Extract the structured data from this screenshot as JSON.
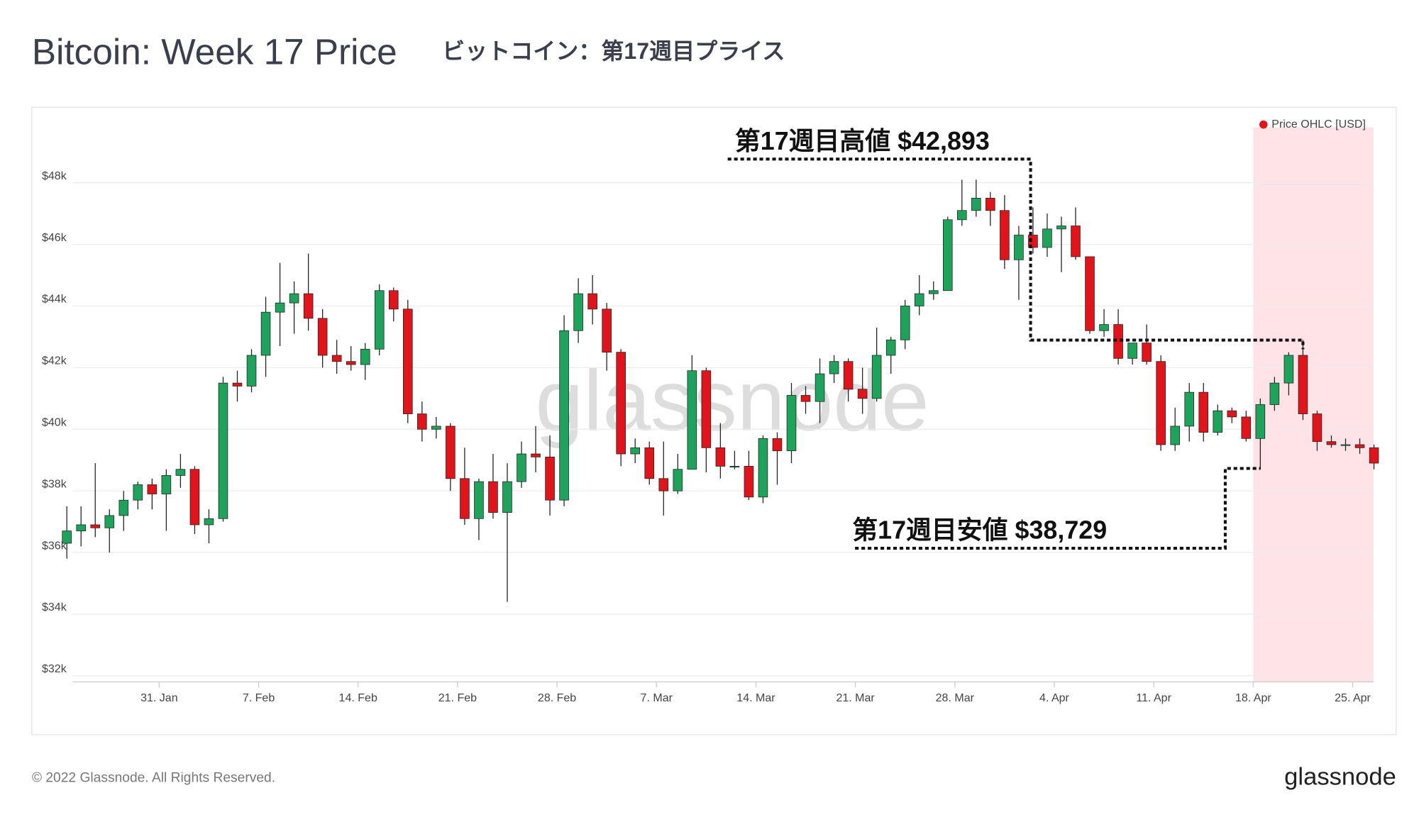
{
  "chart_data": {
    "type": "candlestick",
    "title": "Bitcoin: Week 17 Price",
    "subtitle": "ビットコイン：第17週目プライス",
    "x": [
      "Jan 24",
      "Jan 25",
      "Jan 26",
      "Jan 27",
      "Jan 28",
      "Jan 29",
      "Jan 30",
      "Jan 31",
      "Feb 1",
      "Feb 2",
      "Feb 3",
      "Feb 4",
      "Feb 5",
      "Feb 6",
      "Feb 7",
      "Feb 8",
      "Feb 9",
      "Feb 10",
      "Feb 11",
      "Feb 12",
      "Feb 13",
      "Feb 14",
      "Feb 15",
      "Feb 16",
      "Feb 17",
      "Feb 18",
      "Feb 19",
      "Feb 20",
      "Feb 21",
      "Feb 22",
      "Feb 23",
      "Feb 24",
      "Feb 25",
      "Feb 26",
      "Feb 27",
      "Feb 28",
      "Mar 1",
      "Mar 2",
      "Mar 3",
      "Mar 4",
      "Mar 5",
      "Mar 6",
      "Mar 7",
      "Mar 8",
      "Mar 9",
      "Mar 10",
      "Mar 11",
      "Mar 12",
      "Mar 13",
      "Mar 14",
      "Mar 15",
      "Mar 16",
      "Mar 17",
      "Mar 18",
      "Mar 19",
      "Mar 20",
      "Mar 21",
      "Mar 22",
      "Mar 23",
      "Mar 24",
      "Mar 25",
      "Mar 26",
      "Mar 27",
      "Mar 28",
      "Mar 29",
      "Mar 30",
      "Mar 31",
      "Apr 1",
      "Apr 2",
      "Apr 3",
      "Apr 4",
      "Apr 5",
      "Apr 6",
      "Apr 7",
      "Apr 8",
      "Apr 9",
      "Apr 10",
      "Apr 11",
      "Apr 12",
      "Apr 13",
      "Apr 14",
      "Apr 15",
      "Apr 16",
      "Apr 17",
      "Apr 18",
      "Apr 19",
      "Apr 20",
      "Apr 21",
      "Apr 22",
      "Apr 23",
      "Apr 24",
      "Apr 25",
      "Apr 26"
    ],
    "series": [
      {
        "name": "Price OHLC [USD]",
        "color": "#e0141b",
        "up_color": "#1fa35c",
        "down_color": "#e0141b",
        "open": [
          36300,
          36700,
          36900,
          36800,
          37200,
          37700,
          38200,
          37900,
          38500,
          38700,
          36900,
          37100,
          41500,
          41400,
          42400,
          43800,
          44100,
          44400,
          43600,
          42400,
          42200,
          42100,
          42600,
          44500,
          43900,
          40500,
          40000,
          40100,
          38400,
          37100,
          38300,
          37300,
          38300,
          39200,
          39100,
          37700,
          43200,
          44400,
          43900,
          42500,
          39200,
          39400,
          38400,
          38000,
          38700,
          41900,
          39400,
          38800,
          38800,
          37800,
          39700,
          39300,
          41100,
          40900,
          41800,
          42200,
          41300,
          41000,
          42400,
          42900,
          44000,
          44400,
          44500,
          46800,
          47100,
          47500,
          47100,
          45500,
          46300,
          45900,
          46500,
          46600,
          45600,
          43200,
          43400,
          42300,
          42800,
          42200,
          39500,
          40100,
          41200,
          39900,
          40600,
          40400,
          39700,
          40800,
          41500,
          42400,
          40500,
          39600,
          39500,
          39500,
          39400
        ],
        "high": [
          37500,
          37500,
          38900,
          37400,
          38000,
          38300,
          38400,
          38700,
          39200,
          38800,
          37400,
          41700,
          41900,
          42600,
          44300,
          45400,
          44800,
          45700,
          43900,
          42900,
          42700,
          42800,
          44700,
          44600,
          44200,
          40900,
          40400,
          40200,
          39400,
          38400,
          39200,
          38900,
          39600,
          40100,
          39800,
          43700,
          44900,
          45000,
          44100,
          42600,
          39700,
          39600,
          39600,
          39200,
          42400,
          42000,
          40200,
          39300,
          39300,
          39800,
          39900,
          41500,
          41400,
          42300,
          42400,
          42300,
          42000,
          43300,
          43000,
          44200,
          45000,
          44800,
          46900,
          48100,
          48100,
          47700,
          47600,
          46600,
          47200,
          47000,
          46900,
          47200,
          45600,
          43900,
          43900,
          42800,
          43400,
          42400,
          40700,
          41500,
          41500,
          40800,
          40700,
          40600,
          41000,
          41700,
          42500,
          42900,
          40600,
          39800,
          39700,
          39700,
          39500
        ],
        "low": [
          35800,
          36200,
          36500,
          36000,
          36700,
          37400,
          37400,
          36700,
          38100,
          36600,
          36300,
          37000,
          40900,
          41200,
          41700,
          42700,
          43100,
          43200,
          42000,
          41800,
          41900,
          41600,
          42400,
          43500,
          40200,
          39600,
          39700,
          38000,
          36900,
          36400,
          37100,
          34400,
          38100,
          38600,
          37200,
          37500,
          42800,
          43400,
          41900,
          38800,
          38900,
          38200,
          37200,
          37900,
          38700,
          38600,
          38400,
          38700,
          37700,
          37600,
          38200,
          38900,
          40500,
          40200,
          41500,
          40900,
          40500,
          40900,
          41800,
          42600,
          43700,
          44200,
          44500,
          46600,
          46900,
          46600,
          45200,
          44200,
          45700,
          45600,
          45100,
          45500,
          43100,
          43000,
          42100,
          42100,
          42100,
          39300,
          39300,
          39600,
          39600,
          39800,
          40200,
          39600,
          38700,
          40600,
          41100,
          40300,
          39300,
          39400,
          39300,
          39200,
          38700
        ],
        "close": [
          36700,
          36900,
          36800,
          37200,
          37700,
          38200,
          37900,
          38500,
          38700,
          36900,
          37100,
          41500,
          41400,
          42400,
          43800,
          44100,
          44400,
          43600,
          42400,
          42200,
          42100,
          42600,
          44500,
          43900,
          40500,
          40000,
          40100,
          38400,
          37100,
          38300,
          37300,
          38300,
          39200,
          39100,
          37700,
          43200,
          44400,
          43900,
          42500,
          39200,
          39400,
          38400,
          38000,
          38700,
          41900,
          39400,
          38800,
          38800,
          37800,
          39700,
          39300,
          41100,
          40900,
          41800,
          42200,
          41300,
          41000,
          42400,
          42900,
          44000,
          44400,
          44500,
          46800,
          47100,
          47500,
          47100,
          45500,
          46300,
          45900,
          46500,
          46600,
          45600,
          43200,
          43400,
          42300,
          42800,
          42200,
          39500,
          40100,
          41200,
          39900,
          40600,
          40400,
          39700,
          40800,
          41500,
          42400,
          40500,
          39600,
          39500,
          39500,
          39400,
          38900
        ]
      }
    ],
    "ylim": [
      31800,
      49800
    ],
    "yticks": [
      {
        "value": 32000,
        "label": "$32k"
      },
      {
        "value": 34000,
        "label": "$34k"
      },
      {
        "value": 36000,
        "label": "$36k"
      },
      {
        "value": 38000,
        "label": "$38k"
      },
      {
        "value": 40000,
        "label": "$40k"
      },
      {
        "value": 42000,
        "label": "$42k"
      },
      {
        "value": 44000,
        "label": "$44k"
      },
      {
        "value": 46000,
        "label": "$46k"
      },
      {
        "value": 48000,
        "label": "$48k"
      }
    ],
    "xticks": [
      {
        "value": "Jan 31",
        "label": "31. Jan"
      },
      {
        "value": "Feb 7",
        "label": "7. Feb"
      },
      {
        "value": "Feb 14",
        "label": "14. Feb"
      },
      {
        "value": "Feb 21",
        "label": "21. Feb"
      },
      {
        "value": "Feb 28",
        "label": "28. Feb"
      },
      {
        "value": "Mar 7",
        "label": "7. Mar"
      },
      {
        "value": "Mar 14",
        "label": "14. Mar"
      },
      {
        "value": "Mar 21",
        "label": "21. Mar"
      },
      {
        "value": "Mar 28",
        "label": "28. Mar"
      },
      {
        "value": "Apr 4",
        "label": "4. Apr"
      },
      {
        "value": "Apr 11",
        "label": "11. Apr"
      },
      {
        "value": "Apr 18",
        "label": "18. Apr"
      },
      {
        "value": "Apr 25",
        "label": "25. Apr"
      }
    ],
    "grid": true,
    "legend": "top-right",
    "highlight": {
      "from": "Apr 18",
      "to": "Apr 26",
      "color": "#ffe3e6"
    },
    "annotations": [
      {
        "text": "第17週目高値 $42,893",
        "value": 42893,
        "at": "Apr 21"
      },
      {
        "text": "第17週目安値 $38,729",
        "value": 38729,
        "at": "Apr 18"
      }
    ],
    "watermark": "glassnode",
    "footer": "© 2022 Glassnode. All Rights Reserved.",
    "logo": "glassnode"
  }
}
